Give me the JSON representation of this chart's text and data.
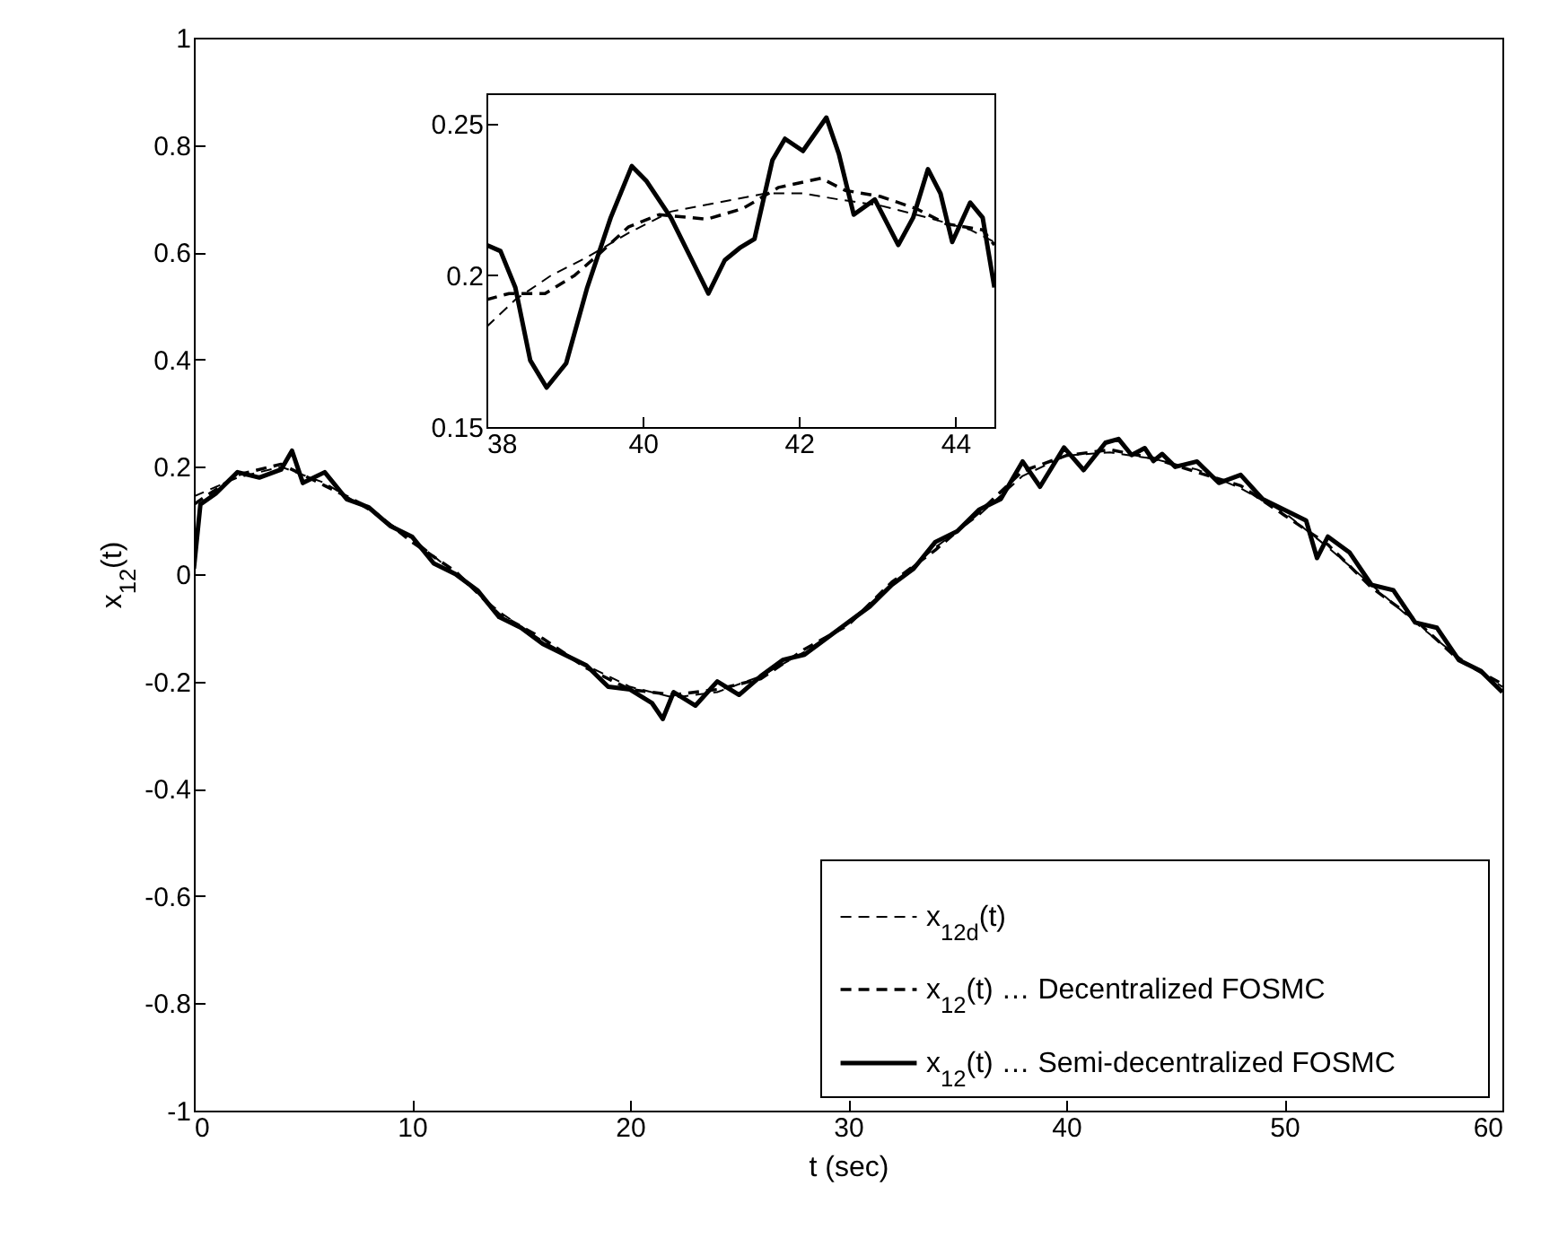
{
  "chart_data": [
    {
      "type": "line",
      "xlabel": "t (sec)",
      "ylabel": "x$_{12}$(t)",
      "xlim": [
        0,
        60
      ],
      "ylim": [
        -1,
        1
      ],
      "xticks": [
        0,
        10,
        20,
        30,
        40,
        50,
        60
      ],
      "yticks": [
        -1,
        -0.8,
        -0.6,
        -0.4,
        -0.2,
        0,
        0.2,
        0.4,
        0.6,
        0.8,
        1
      ],
      "grid": false,
      "legend": "bottom right",
      "marker": "none",
      "series": [
        {
          "name": "x$_{12d}$(t)",
          "color": "#000000",
          "line_style": "dashed",
          "x": [
            0,
            2,
            4,
            6,
            8,
            10,
            12,
            14,
            16,
            18,
            20,
            22,
            24,
            26,
            28,
            30,
            32,
            34,
            36,
            38,
            40,
            42,
            44,
            46,
            48,
            50,
            52,
            54,
            56,
            58,
            60
          ],
          "values": [
            0.145,
            0.18,
            0.2,
            0.17,
            0.12,
            0.067,
            0.0,
            -0.07,
            -0.125,
            -0.17,
            -0.21,
            -0.23,
            -0.22,
            -0.19,
            -0.145,
            -0.09,
            -0.02,
            0.05,
            0.11,
            0.183,
            0.221,
            0.227,
            0.215,
            0.195,
            0.16,
            0.115,
            0.05,
            -0.02,
            -0.09,
            -0.155,
            -0.21
          ]
        },
        {
          "name": "x$_{12}$(t) … Decentralized FOSMC",
          "color": "#000000",
          "line_style": "dashed",
          "x": [
            0,
            2,
            4,
            6,
            8,
            10,
            12,
            14,
            16,
            18,
            20,
            22,
            24,
            26,
            28,
            30,
            32,
            34,
            36,
            38,
            40,
            42,
            44,
            46,
            48,
            50,
            52,
            54,
            56,
            58,
            60
          ],
          "values": [
            0.13,
            0.185,
            0.205,
            0.165,
            0.125,
            0.06,
            0.005,
            -0.075,
            -0.12,
            -0.175,
            -0.215,
            -0.225,
            -0.215,
            -0.195,
            -0.14,
            -0.095,
            -0.015,
            0.045,
            0.115,
            0.192,
            0.221,
            0.232,
            0.216,
            0.19,
            0.165,
            0.11,
            0.055,
            -0.025,
            -0.085,
            -0.16,
            -0.205
          ]
        },
        {
          "name": "x$_{12}$(t) … Semi-decentralized FOSMC",
          "color": "#000000",
          "line_style": "solid",
          "x": [
            0,
            0.3,
            1,
            2,
            3,
            4,
            4.5,
            5,
            6,
            7,
            8,
            9,
            10,
            11,
            12,
            13,
            14,
            15,
            16,
            17,
            18,
            19,
            20,
            21,
            21.5,
            22,
            23,
            24,
            25,
            26,
            27,
            28,
            29,
            30,
            31,
            32,
            33,
            34,
            35,
            36,
            37,
            38,
            38.8,
            39.9,
            40.8,
            41.8,
            42.4,
            43,
            43.6,
            44,
            44.4,
            45,
            46,
            47,
            48,
            49,
            50,
            51,
            51.5,
            52,
            53,
            54,
            55,
            56,
            57,
            58,
            59,
            60
          ],
          "values": [
            0.01,
            0.13,
            0.15,
            0.19,
            0.18,
            0.195,
            0.23,
            0.17,
            0.19,
            0.14,
            0.125,
            0.09,
            0.07,
            0.02,
            0.0,
            -0.03,
            -0.08,
            -0.1,
            -0.13,
            -0.15,
            -0.17,
            -0.21,
            -0.215,
            -0.24,
            -0.27,
            -0.22,
            -0.245,
            -0.2,
            -0.225,
            -0.19,
            -0.16,
            -0.15,
            -0.12,
            -0.09,
            -0.06,
            -0.02,
            0.01,
            0.06,
            0.08,
            0.12,
            0.14,
            0.21,
            0.163,
            0.236,
            0.194,
            0.245,
            0.252,
            0.222,
            0.235,
            0.211,
            0.224,
            0.2,
            0.21,
            0.17,
            0.185,
            0.14,
            0.12,
            0.1,
            0.03,
            0.07,
            0.04,
            -0.02,
            -0.03,
            -0.09,
            -0.1,
            -0.16,
            -0.18,
            -0.22
          ]
        }
      ]
    },
    {
      "type": "line",
      "xlim": [
        38,
        44.5
      ],
      "ylim": [
        0.15,
        0.26
      ],
      "xticks": [
        38,
        40,
        42,
        44
      ],
      "yticks": [
        0.15,
        0.2,
        0.25
      ],
      "grid": false,
      "legend": false,
      "marker": "none",
      "series": [
        {
          "color": "#000000",
          "line_style": "dashed",
          "x": [
            38,
            38.37,
            38.83,
            39.29,
            39.82,
            40.36,
            40.97,
            41.58,
            42.05,
            42.51,
            43.04,
            43.65,
            44.19,
            44.5
          ],
          "values": [
            0.183,
            0.192,
            0.2,
            0.206,
            0.214,
            0.221,
            0.224,
            0.227,
            0.227,
            0.225,
            0.223,
            0.219,
            0.215,
            0.211
          ]
        },
        {
          "color": "#000000",
          "line_style": "dashed",
          "x": [
            38,
            38.29,
            38.75,
            39.13,
            39.44,
            39.82,
            40.21,
            40.82,
            41.28,
            41.74,
            42.28,
            42.59,
            43.04,
            43.5,
            43.88,
            44.35,
            44.5
          ],
          "values": [
            0.192,
            0.194,
            0.194,
            0.2,
            0.207,
            0.216,
            0.22,
            0.2185,
            0.222,
            0.229,
            0.232,
            0.228,
            0.226,
            0.222,
            0.217,
            0.215,
            0.21
          ]
        },
        {
          "color": "#000000",
          "line_style": "solid",
          "x": [
            38,
            38.18,
            38.37,
            38.56,
            38.77,
            39.02,
            39.29,
            39.59,
            39.86,
            40.05,
            40.36,
            40.63,
            40.84,
            41.05,
            41.24,
            41.43,
            41.66,
            41.82,
            42.05,
            42.35,
            42.51,
            42.7,
            42.97,
            43.27,
            43.46,
            43.65,
            43.81,
            43.96,
            44.19,
            44.35,
            44.5
          ],
          "values": [
            0.21,
            0.208,
            0.196,
            0.172,
            0.163,
            0.171,
            0.196,
            0.219,
            0.236,
            0.231,
            0.219,
            0.205,
            0.194,
            0.205,
            0.209,
            0.212,
            0.238,
            0.245,
            0.241,
            0.252,
            0.24,
            0.22,
            0.225,
            0.21,
            0.219,
            0.235,
            0.227,
            0.211,
            0.224,
            0.219,
            0.196
          ]
        }
      ]
    }
  ]
}
